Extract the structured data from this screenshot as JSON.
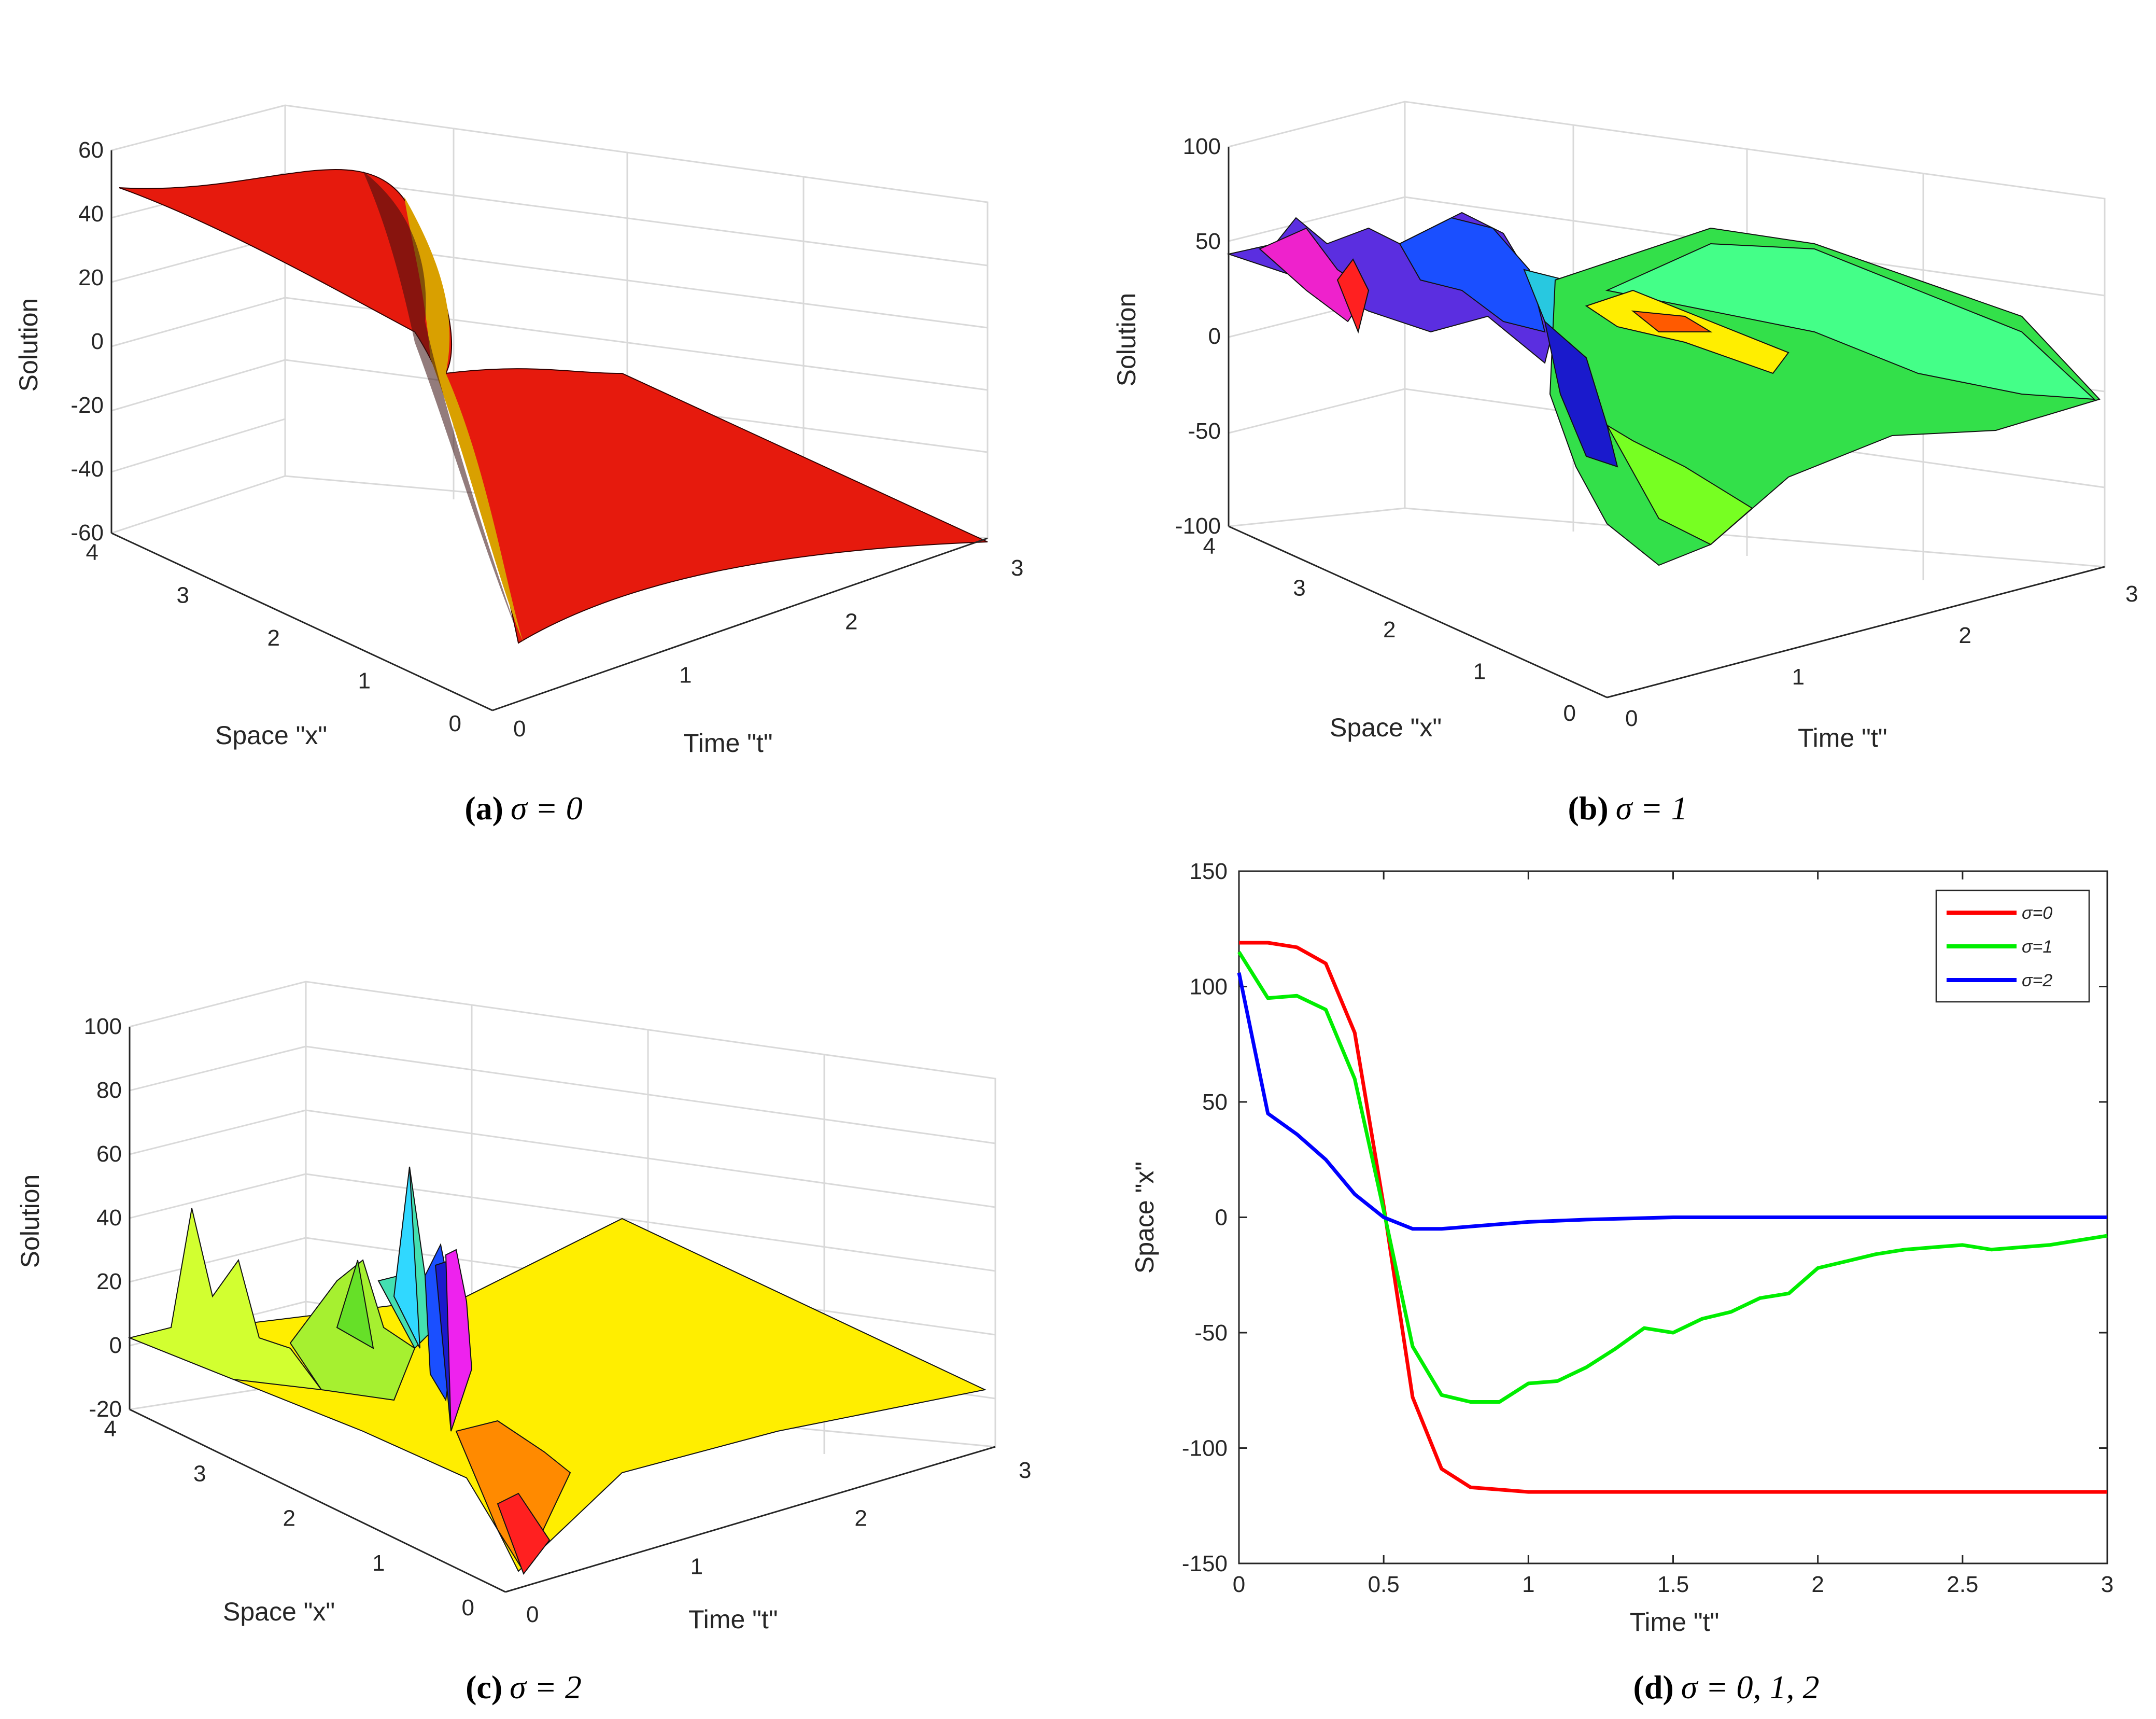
{
  "chart_data": [
    {
      "id": "a",
      "type": "surface",
      "caption_label": "(a)",
      "caption_expr": "σ = 0",
      "xlabel": "Space \"x\"",
      "ylabel": "Time \"t\"",
      "zlabel": "Solution",
      "x_ticks": [
        "0",
        "1",
        "2",
        "3",
        "4"
      ],
      "t_ticks": [
        "0",
        "1",
        "2",
        "3"
      ],
      "z_ticks": [
        "-60",
        "-40",
        "-20",
        "0",
        "20",
        "40",
        "60"
      ],
      "zlim": [
        -60,
        60
      ],
      "colormap": [
        "#ff0000",
        "#ff4000",
        "#ffff00"
      ]
    },
    {
      "id": "b",
      "type": "surface",
      "caption_label": "(b)",
      "caption_expr": "σ = 1",
      "xlabel": "Space \"x\"",
      "ylabel": "Time \"t\"",
      "zlabel": "Solution",
      "x_ticks": [
        "0",
        "1",
        "2",
        "3",
        "4"
      ],
      "t_ticks": [
        "0",
        "1",
        "2",
        "3"
      ],
      "z_ticks": [
        "-100",
        "-50",
        "0",
        "50",
        "100"
      ],
      "zlim": [
        -100,
        100
      ]
    },
    {
      "id": "c",
      "type": "surface",
      "caption_label": "(c)",
      "caption_expr": "σ = 2",
      "xlabel": "Space \"x\"",
      "ylabel": "Time \"t\"",
      "zlabel": "Solution",
      "x_ticks": [
        "0",
        "1",
        "2",
        "3",
        "4"
      ],
      "t_ticks": [
        "0",
        "1",
        "2",
        "3"
      ],
      "z_ticks": [
        "-20",
        "0",
        "20",
        "40",
        "60",
        "80",
        "100"
      ],
      "zlim": [
        -20,
        100
      ]
    },
    {
      "id": "d",
      "type": "line",
      "caption_label": "(d)",
      "caption_expr": "σ = 0, 1, 2",
      "xlabel": "Time \"t\"",
      "ylabel": "Space \"x\"",
      "xlim": [
        0,
        3
      ],
      "ylim": [
        -150,
        150
      ],
      "x_ticks": [
        "0",
        "0.5",
        "1",
        "1.5",
        "2",
        "2.5",
        "3"
      ],
      "y_ticks": [
        "-150",
        "-100",
        "-50",
        "0",
        "50",
        "100",
        "150"
      ],
      "legend_position": "top-right",
      "series": [
        {
          "name": "σ=0",
          "color": "#ff0000",
          "x": [
            0,
            0.1,
            0.2,
            0.3,
            0.4,
            0.5,
            0.6,
            0.7,
            0.8,
            0.9,
            1.0,
            1.5,
            2.0,
            2.5,
            3.0
          ],
          "y": [
            119,
            119,
            117,
            110,
            80,
            5,
            -78,
            -109,
            -117,
            -118,
            -119,
            -119,
            -119,
            -119,
            -119
          ]
        },
        {
          "name": "σ=1",
          "color": "#00ee00",
          "x": [
            0,
            0.1,
            0.2,
            0.3,
            0.4,
            0.5,
            0.6,
            0.7,
            0.8,
            0.9,
            1.0,
            1.1,
            1.2,
            1.3,
            1.4,
            1.5,
            1.6,
            1.7,
            1.8,
            1.9,
            2.0,
            2.1,
            2.2,
            2.3,
            2.4,
            2.5,
            2.6,
            2.7,
            2.8,
            2.9,
            3.0
          ],
          "y": [
            115,
            95,
            96,
            90,
            60,
            3,
            -56,
            -77,
            -80,
            -80,
            -72,
            -71,
            -65,
            -57,
            -48,
            -50,
            -44,
            -41,
            -35,
            -33,
            -22,
            -19,
            -16,
            -14,
            -13,
            -12,
            -14,
            -13,
            -12,
            -10,
            -8
          ]
        },
        {
          "name": "σ=2",
          "color": "#0000ff",
          "x": [
            0,
            0.1,
            0.2,
            0.3,
            0.4,
            0.5,
            0.6,
            0.7,
            0.8,
            0.9,
            1.0,
            1.2,
            1.5,
            2.0,
            2.5,
            3.0
          ],
          "y": [
            106,
            45,
            36,
            25,
            10,
            0,
            -5,
            -5,
            -4,
            -3,
            -2,
            -1,
            0,
            0,
            0,
            0
          ]
        }
      ]
    }
  ]
}
